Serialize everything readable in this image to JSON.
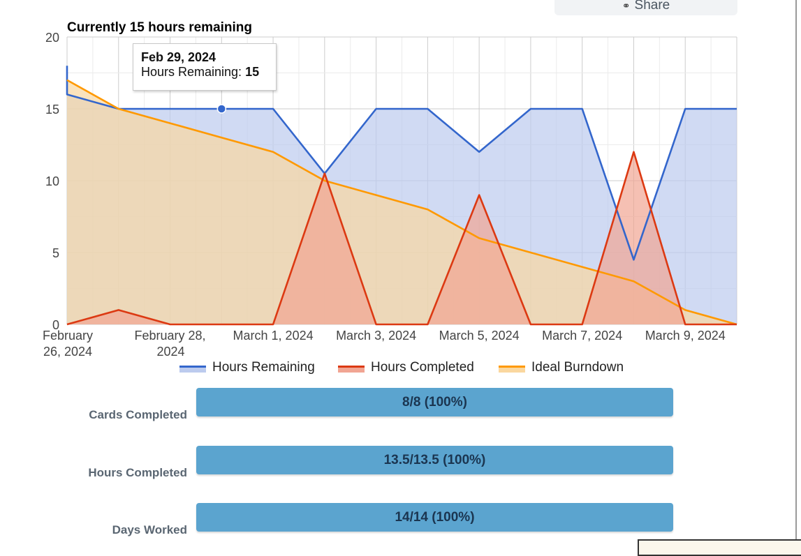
{
  "share_label": "Share",
  "chart_data": {
    "type": "area",
    "title": "Currently 15 hours remaining",
    "ylim": [
      0,
      20
    ],
    "y_ticks": [
      0,
      5,
      10,
      15,
      20
    ],
    "x_tick_labels": [
      {
        "day": 0,
        "lines": [
          "February",
          "26, 2024"
        ]
      },
      {
        "day": 2,
        "lines": [
          "February 28,",
          "2024"
        ]
      },
      {
        "day": 4,
        "lines": [
          "March 1, 2024"
        ]
      },
      {
        "day": 6,
        "lines": [
          "March 3, 2024"
        ]
      },
      {
        "day": 8,
        "lines": [
          "March 5, 2024"
        ]
      },
      {
        "day": 10,
        "lines": [
          "March 7, 2024"
        ]
      },
      {
        "day": 12,
        "lines": [
          "March 9, 2024"
        ]
      }
    ],
    "x": [
      0,
      1,
      2,
      3,
      4,
      5,
      6,
      7,
      8,
      9,
      10,
      11,
      12,
      13
    ],
    "x_dates": [
      "Feb 26, 2024",
      "Feb 27, 2024",
      "Feb 28, 2024",
      "Feb 29, 2024",
      "Mar 1, 2024",
      "Mar 2, 2024",
      "Mar 3, 2024",
      "Mar 4, 2024",
      "Mar 5, 2024",
      "Mar 6, 2024",
      "Mar 7, 2024",
      "Mar 8, 2024",
      "Mar 9, 2024",
      "Mar 10, 2024"
    ],
    "series": [
      {
        "name": "Hours Remaining",
        "color": "#3366cc",
        "fill": "#bccbee",
        "start_value": 18,
        "values": [
          16,
          15,
          15,
          15,
          15,
          10.5,
          15,
          15,
          12,
          15,
          15,
          4.5,
          15,
          15
        ]
      },
      {
        "name": "Hours Completed",
        "color": "#dc3912",
        "fill": "#f1a593",
        "values": [
          0,
          1,
          0,
          0,
          0,
          10.5,
          0,
          0,
          9,
          0,
          0,
          12,
          0,
          0
        ]
      },
      {
        "name": "Ideal Burndown",
        "color": "#ff9900",
        "fill": "#fad79f",
        "values": [
          17,
          15,
          14,
          13,
          12,
          10,
          9,
          8,
          6,
          5,
          4,
          3,
          1,
          0
        ]
      }
    ],
    "grid": true,
    "legend": "bottom"
  },
  "tooltip": {
    "date": "Feb 29, 2024",
    "label": "Hours Remaining:",
    "value": "15",
    "point_index": 3
  },
  "stats": [
    {
      "label": "Cards Completed",
      "value": "8/8 (100%)"
    },
    {
      "label": "Hours Completed",
      "value": "13.5/13.5 (100%)"
    },
    {
      "label": "Days Worked",
      "value": "14/14 (100%)"
    }
  ]
}
